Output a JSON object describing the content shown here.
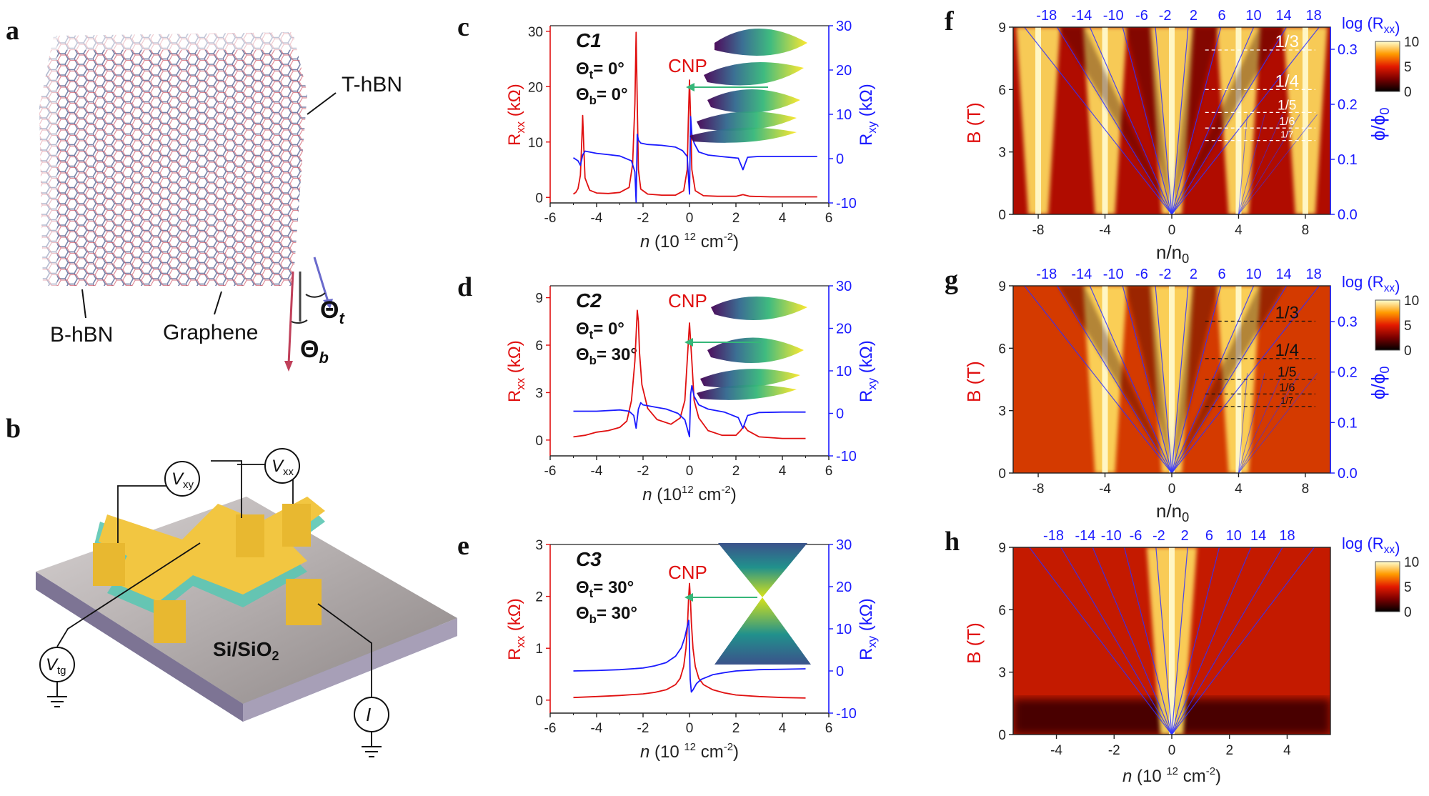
{
  "panels": {
    "a": {
      "label": "a",
      "top_hbn": "T-hBN",
      "bottom_hbn": "B-hBN",
      "graphene": "Graphene",
      "theta_t": "Θ",
      "theta_t_sub": "t",
      "theta_b": "Θ",
      "theta_b_sub": "b"
    },
    "b": {
      "label": "b",
      "vxy": "V",
      "vxy_sub": "xy",
      "vxx": "V",
      "vxx_sub": "xx",
      "vtg": "V",
      "vtg_sub": "tg",
      "current": "I",
      "substrate": "Si/SiO",
      "substrate_sub": "2"
    }
  },
  "colors": {
    "red": "#e01010",
    "blue": "#1a1aff",
    "gold": "#f2c641",
    "teal": "#5cc7b3"
  },
  "chart_data": [
    {
      "id": "c",
      "label": "c",
      "type": "line",
      "sample": "C1",
      "theta_t": "Θt= 0°",
      "theta_b": "Θb= 0°",
      "cnp_label": "CNP",
      "xlabel": "n (10 12 cm-2)",
      "ylabel_left": "Rxx (kΩ)",
      "ylabel_right": "Rxy (kΩ)",
      "xlim": [
        -6,
        6
      ],
      "ylim_left": [
        -1,
        31
      ],
      "ylim_right": [
        -10,
        30
      ],
      "xticks": [
        -6,
        -4,
        -2,
        0,
        2,
        4,
        6
      ],
      "yticks_left": [
        0,
        10,
        20,
        30
      ],
      "yticks_right": [
        -10,
        0,
        10,
        20,
        30
      ],
      "series": [
        {
          "name": "Rxx",
          "axis": "left",
          "color": "#e01010",
          "x": [
            -5.0,
            -4.9,
            -4.8,
            -4.7,
            -4.65,
            -4.6,
            -4.55,
            -4.5,
            -4.3,
            -4.0,
            -3.5,
            -3.0,
            -2.6,
            -2.45,
            -2.35,
            -2.3,
            -2.25,
            -2.2,
            -2.1,
            -1.8,
            -1.2,
            -0.6,
            -0.25,
            -0.1,
            -0.05,
            0.0,
            0.05,
            0.1,
            0.25,
            0.6,
            1.2,
            2.0,
            2.3,
            2.6,
            3.5,
            4.5,
            5.5
          ],
          "y": [
            0.6,
            0.9,
            1.6,
            4.0,
            9.0,
            14.8,
            9.0,
            3.5,
            1.3,
            0.8,
            0.7,
            0.9,
            1.8,
            6.0,
            17.0,
            29.8,
            17.0,
            5.0,
            1.5,
            0.6,
            0.4,
            0.4,
            1.2,
            5.0,
            14.0,
            21.2,
            14.0,
            5.0,
            1.2,
            0.3,
            0.2,
            0.2,
            0.5,
            0.2,
            0.1,
            0.1,
            0.1
          ]
        },
        {
          "name": "Rxy",
          "axis": "right",
          "color": "#1a1aff",
          "x": [
            -5.0,
            -4.8,
            -4.7,
            -4.6,
            -4.5,
            -4.3,
            -4.0,
            -3.5,
            -3.0,
            -2.5,
            -2.35,
            -2.3,
            -2.25,
            -2.2,
            -2.1,
            -1.8,
            -1.2,
            -0.6,
            -0.3,
            -0.1,
            0.0,
            0.05,
            0.1,
            0.2,
            0.4,
            0.8,
            1.5,
            2.1,
            2.3,
            2.5,
            3.0,
            4.0,
            5.5
          ],
          "y": [
            0.2,
            -0.5,
            -1.5,
            0.8,
            1.7,
            1.5,
            1.2,
            0.9,
            0.6,
            -0.5,
            -3.0,
            -9.8,
            5.5,
            4.2,
            3.5,
            3.2,
            3.0,
            2.6,
            1.8,
            0.5,
            -8.0,
            9.5,
            5.5,
            3.5,
            1.5,
            0.8,
            0.4,
            0.1,
            -2.5,
            0.3,
            0.5,
            0.5,
            0.5
          ]
        }
      ]
    },
    {
      "id": "d",
      "label": "d",
      "type": "line",
      "sample": "C2",
      "theta_t": "Θt= 0°",
      "theta_b": "Θb= 30°",
      "cnp_label": "CNP",
      "xlabel": "n (1012 cm-2)",
      "ylabel_left": "Rxx (kΩ)",
      "ylabel_right": "Rxy (kΩ)",
      "xlim": [
        -6,
        6
      ],
      "ylim_left": [
        -1,
        9.75
      ],
      "ylim_right": [
        -10,
        30
      ],
      "xticks": [
        -6,
        -4,
        -2,
        0,
        2,
        4,
        6
      ],
      "yticks_left": [
        0,
        3,
        6,
        9
      ],
      "yticks_right": [
        -10,
        0,
        10,
        20,
        30
      ],
      "series": [
        {
          "name": "Rxx",
          "axis": "left",
          "color": "#e01010",
          "x": [
            -5.0,
            -4.5,
            -4.0,
            -3.5,
            -3.0,
            -2.7,
            -2.5,
            -2.35,
            -2.25,
            -2.2,
            -2.15,
            -2.05,
            -1.8,
            -1.4,
            -0.8,
            -0.4,
            -0.2,
            -0.1,
            0.0,
            0.1,
            0.2,
            0.4,
            0.8,
            1.4,
            2.0,
            2.2,
            2.35,
            2.5,
            3.0,
            4.0,
            5.0
          ],
          "y": [
            0.2,
            0.3,
            0.5,
            0.6,
            0.8,
            1.2,
            2.5,
            5.0,
            8.2,
            7.5,
            5.5,
            3.5,
            2.0,
            1.3,
            1.0,
            1.4,
            2.5,
            5.0,
            7.4,
            5.0,
            2.5,
            1.4,
            0.6,
            0.3,
            0.3,
            0.6,
            0.9,
            0.6,
            0.2,
            0.1,
            0.1
          ]
        },
        {
          "name": "Rxy",
          "axis": "right",
          "color": "#1a1aff",
          "x": [
            -5.0,
            -4.0,
            -3.0,
            -2.6,
            -2.4,
            -2.3,
            -2.2,
            -2.1,
            -2.0,
            -1.5,
            -1.0,
            -0.5,
            -0.2,
            -0.1,
            0.0,
            0.05,
            0.1,
            0.2,
            0.4,
            0.8,
            1.5,
            2.1,
            2.3,
            2.5,
            3.0,
            4.0,
            5.0
          ],
          "y": [
            0.5,
            0.5,
            0.8,
            0.5,
            -0.5,
            -3.5,
            1.0,
            2.5,
            2.0,
            1.5,
            1.0,
            0.0,
            -1.5,
            -3.5,
            -5.5,
            4.5,
            6.5,
            4.0,
            2.0,
            1.0,
            0.3,
            -1.0,
            -3.5,
            -0.5,
            0.2,
            0.3,
            0.3
          ]
        }
      ]
    },
    {
      "id": "e",
      "label": "e",
      "type": "line",
      "sample": "C3",
      "theta_t": "Θt= 30°",
      "theta_b": "Θb= 30°",
      "cnp_label": "CNP",
      "xlabel": "n (10 12 cm-2)",
      "ylabel_left": "Rxx (kΩ)",
      "ylabel_right": "Rxy (kΩ)",
      "xlim": [
        -6,
        6
      ],
      "ylim_left": [
        -0.25,
        3.0
      ],
      "ylim_right": [
        -10,
        30
      ],
      "xticks": [
        -6,
        -4,
        -2,
        0,
        2,
        4,
        6
      ],
      "yticks_left": [
        0,
        1,
        2,
        3
      ],
      "yticks_right": [
        -10,
        0,
        10,
        20,
        30
      ],
      "series": [
        {
          "name": "Rxx",
          "axis": "left",
          "color": "#e01010",
          "x": [
            -5.0,
            -4.0,
            -3.0,
            -2.0,
            -1.5,
            -1.0,
            -0.6,
            -0.4,
            -0.25,
            -0.15,
            -0.08,
            -0.04,
            0.0,
            0.04,
            0.08,
            0.15,
            0.25,
            0.4,
            0.6,
            1.0,
            1.5,
            2.0,
            3.0,
            4.0,
            5.0
          ],
          "y": [
            0.05,
            0.07,
            0.09,
            0.12,
            0.15,
            0.2,
            0.3,
            0.42,
            0.65,
            1.0,
            1.5,
            1.95,
            2.25,
            1.95,
            1.5,
            1.0,
            0.65,
            0.42,
            0.3,
            0.2,
            0.14,
            0.1,
            0.07,
            0.05,
            0.04
          ]
        },
        {
          "name": "Rxy",
          "axis": "right",
          "color": "#1a1aff",
          "x": [
            -5.0,
            -4.0,
            -3.0,
            -2.0,
            -1.5,
            -1.0,
            -0.6,
            -0.35,
            -0.2,
            -0.1,
            -0.03,
            0.0,
            0.03,
            0.08,
            0.15,
            0.3,
            0.5,
            1.0,
            1.5,
            2.0,
            3.0,
            4.0,
            5.0
          ],
          "y": [
            0.0,
            0.1,
            0.3,
            0.7,
            1.2,
            2.0,
            3.5,
            5.5,
            8.0,
            10.5,
            12.0,
            6.0,
            -2.0,
            -5.0,
            -4.5,
            -3.0,
            -2.0,
            -0.9,
            -0.4,
            0.0,
            0.3,
            0.4,
            0.5
          ]
        }
      ]
    },
    {
      "id": "f",
      "label": "f",
      "type": "heatmap",
      "xlabel": "n/n0",
      "ylabel": "B (T)",
      "ylabel_right": "ϕ/ϕ0",
      "xlim": [
        -9.5,
        9.5
      ],
      "ylim": [
        0,
        9
      ],
      "xticks": [
        -8,
        -4,
        0,
        4,
        8
      ],
      "yticks": [
        0,
        3,
        6,
        9
      ],
      "yticks_right": [
        0.0,
        0.1,
        0.2,
        0.3
      ],
      "phi_per_tesla": 0.0378,
      "top_labels": [
        "-18",
        "-14",
        "-10",
        "-6",
        "-2",
        "2",
        "6",
        "10",
        "14",
        "18"
      ],
      "landau_fan_filling": [
        -18,
        -14,
        -10,
        -6,
        -2,
        2,
        6,
        10,
        14,
        18
      ],
      "fractions": [
        "1/3",
        "1/4",
        "1/5",
        "1/6",
        "1/7"
      ],
      "colorbar_title": "log (Rxx)",
      "colorbar_ticks": [
        0,
        5,
        10
      ],
      "dirac_points": [
        -8,
        -4,
        0,
        4,
        8
      ]
    },
    {
      "id": "g",
      "label": "g",
      "type": "heatmap",
      "xlabel": "n/n0",
      "ylabel": "B (T)",
      "ylabel_right": "ϕ/ϕ0",
      "xlim": [
        -9.5,
        9.5
      ],
      "ylim": [
        0,
        9
      ],
      "xticks": [
        -8,
        -4,
        0,
        4,
        8
      ],
      "yticks": [
        0,
        3,
        6,
        9
      ],
      "yticks_right": [
        0.0,
        0.1,
        0.2,
        0.3
      ],
      "phi_per_tesla": 0.0412,
      "top_labels": [
        "-18",
        "-14",
        "-10",
        "-6",
        "-2",
        "2",
        "6",
        "10",
        "14",
        "18"
      ],
      "landau_fan_filling": [
        -18,
        -14,
        -10,
        -6,
        -2,
        2,
        6,
        10,
        14,
        18
      ],
      "fractions": [
        "1/3",
        "1/4",
        "1/5",
        "1/6",
        "1/7"
      ],
      "colorbar_title": "log (Rxx)",
      "colorbar_ticks": [
        0,
        5,
        10
      ],
      "dirac_points": [
        -4,
        0,
        4
      ]
    },
    {
      "id": "h",
      "label": "h",
      "type": "heatmap",
      "xlabel": "n (10 12 cm-2)",
      "ylabel": "B (T)",
      "xlim": [
        -5.5,
        5.5
      ],
      "ylim": [
        0,
        9
      ],
      "xticks": [
        -4,
        -2,
        0,
        2,
        4
      ],
      "yticks": [
        0,
        3,
        6,
        9
      ],
      "top_labels": [
        "-18",
        "-14",
        "-10",
        "-6",
        "-2",
        "2",
        "6",
        "10",
        "14",
        "18"
      ],
      "landau_fan_filling": [
        -18,
        -14,
        -10,
        -6,
        -2,
        2,
        6,
        10,
        14,
        18
      ],
      "colorbar_title": "log (Rxx)",
      "colorbar_ticks": [
        0,
        5,
        10
      ],
      "dirac_points": [
        0
      ]
    }
  ]
}
